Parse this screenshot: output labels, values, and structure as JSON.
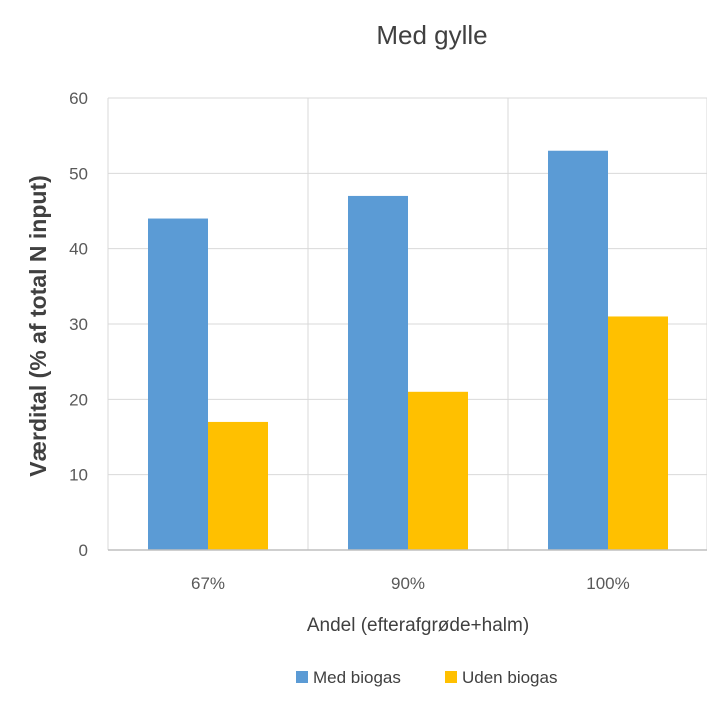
{
  "chart_data": {
    "type": "bar",
    "title": "Med gylle",
    "xlabel": "Andel (efterafgrøde+halm)",
    "ylabel": "Værdital (% af total N input)",
    "categories": [
      "67%",
      "90%",
      "100%"
    ],
    "series": [
      {
        "name": "Med biogas",
        "color": "#5B9BD5",
        "values": [
          44,
          47,
          53
        ]
      },
      {
        "name": "Uden biogas",
        "color": "#FFC000",
        "values": [
          17,
          21,
          31
        ]
      }
    ],
    "ylim": [
      0,
      60
    ],
    "yticks": [
      0,
      10,
      20,
      30,
      40,
      50,
      60
    ],
    "grid": true,
    "legend_position": "bottom"
  }
}
